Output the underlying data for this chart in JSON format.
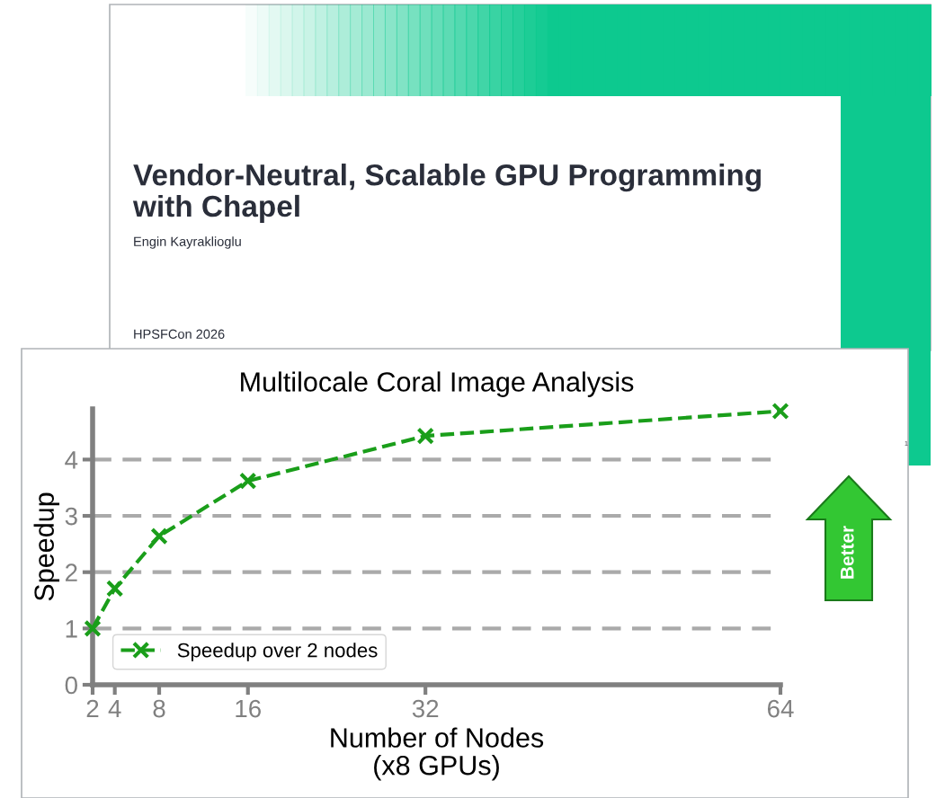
{
  "chart_data": {
    "type": "line",
    "title": "Multilocale Coral Image Analysis",
    "xlabel": "Number of Nodes\n(x8 GPUs)",
    "ylabel": "Speedup",
    "x": [
      2,
      4,
      8,
      16,
      32,
      64
    ],
    "series": [
      {
        "name": "Speedup over 2 nodes",
        "color": "#1a9e1a",
        "values": [
          1.0,
          1.71,
          2.64,
          3.62,
          4.42,
          4.86
        ]
      }
    ],
    "xlim": [
      2,
      64
    ],
    "xticks": [
      2,
      4,
      8,
      16,
      32,
      64
    ],
    "ylim": [
      0,
      4.9
    ],
    "yticks": [
      0,
      1,
      2,
      3,
      4
    ],
    "grid": "y",
    "legend": "bottom left",
    "marker": "cross",
    "line_style": "dashed",
    "annotations": [
      "Vendor-Neutral, Scalable GPU Programming\nwith Chapel",
      "Engin Kayraklioglu",
      "HPSFCon 2026",
      "1",
      "Better"
    ]
  }
}
